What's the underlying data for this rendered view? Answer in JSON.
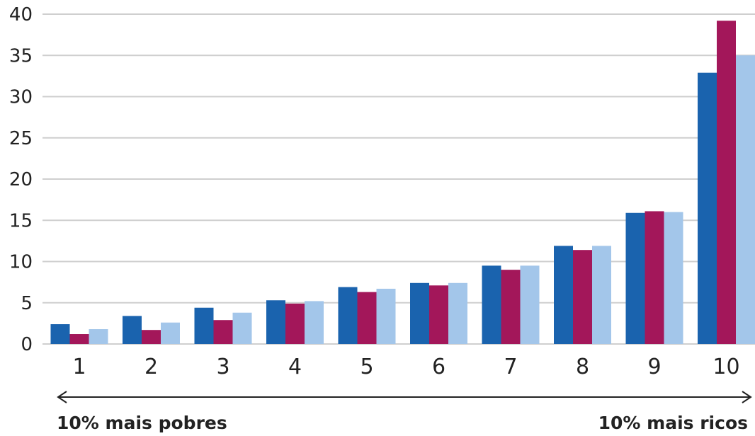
{
  "chart_data": {
    "type": "bar",
    "categories": [
      "1",
      "2",
      "3",
      "4",
      "5",
      "6",
      "7",
      "8",
      "9",
      "10"
    ],
    "series": [
      {
        "color": "#1a63ae",
        "values": [
          2.4,
          3.4,
          4.4,
          5.3,
          6.9,
          7.4,
          9.5,
          11.9,
          15.9,
          32.9
        ]
      },
      {
        "color": "#a3175a",
        "values": [
          1.2,
          1.7,
          2.9,
          4.9,
          6.3,
          7.1,
          9.0,
          11.4,
          16.1,
          39.2
        ]
      },
      {
        "color": "#a3c6ea",
        "values": [
          1.8,
          2.6,
          3.8,
          5.2,
          6.7,
          7.4,
          9.5,
          11.9,
          16.0,
          35.0
        ]
      }
    ],
    "y_ticks": [
      "0",
      "5",
      "10",
      "15",
      "20",
      "25",
      "30",
      "35",
      "40"
    ],
    "ylim": [
      0,
      40
    ],
    "grid": true,
    "gridline_color": "#cfcfcf"
  },
  "annotations": {
    "left_extreme": "10% mais pobres",
    "right_extreme": "10% mais ricos",
    "arrow_color": "#222222"
  }
}
